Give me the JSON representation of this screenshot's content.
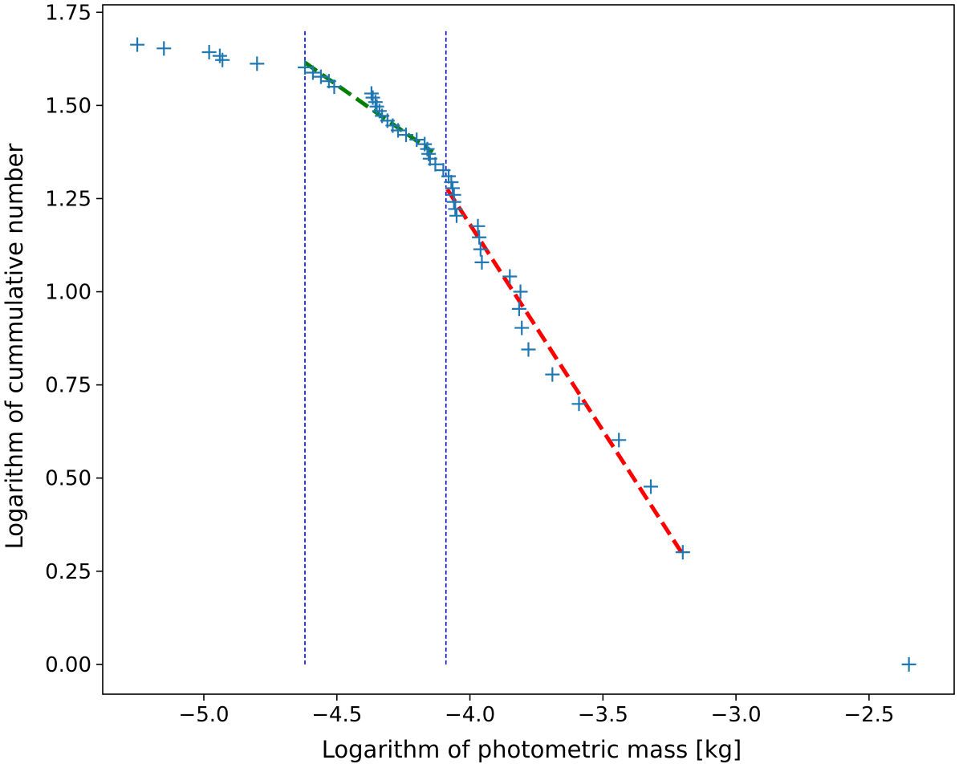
{
  "chart_data": {
    "type": "scatter",
    "title": "",
    "xlabel": "Logarithm of photometric mass [kg]",
    "ylabel": "Logarithm of cummulative number",
    "xlim": [
      -5.38,
      -2.18
    ],
    "ylim": [
      -0.08,
      1.77
    ],
    "grid": false,
    "x_ticks": [
      -5.0,
      -4.5,
      -4.0,
      -3.5,
      -3.0,
      -2.5
    ],
    "x_tick_labels": [
      "−5.0",
      "−4.5",
      "−4.0",
      "−3.5",
      "−3.0",
      "−2.5"
    ],
    "y_ticks": [
      0.0,
      0.25,
      0.5,
      0.75,
      1.0,
      1.25,
      1.5,
      1.75
    ],
    "y_tick_labels": [
      "0.00",
      "0.25",
      "0.50",
      "0.75",
      "1.00",
      "1.25",
      "1.50",
      "1.75"
    ],
    "series": [
      {
        "marker": "plus",
        "color": "#1f77b4",
        "points": [
          [
            -5.25,
            1.663
          ],
          [
            -5.15,
            1.653
          ],
          [
            -4.98,
            1.643
          ],
          [
            -4.94,
            1.633
          ],
          [
            -4.93,
            1.622
          ],
          [
            -4.8,
            1.612
          ],
          [
            -4.62,
            1.602
          ],
          [
            -4.59,
            1.588
          ],
          [
            -4.56,
            1.577
          ],
          [
            -4.53,
            1.565
          ],
          [
            -4.51,
            1.55
          ],
          [
            -4.37,
            1.532
          ],
          [
            -4.365,
            1.521
          ],
          [
            -4.355,
            1.509
          ],
          [
            -4.35,
            1.497
          ],
          [
            -4.34,
            1.485
          ],
          [
            -4.33,
            1.472
          ],
          [
            -4.31,
            1.459
          ],
          [
            -4.29,
            1.446
          ],
          [
            -4.27,
            1.433
          ],
          [
            -4.24,
            1.421
          ],
          [
            -4.2,
            1.408
          ],
          [
            -4.17,
            1.396
          ],
          [
            -4.16,
            1.383
          ],
          [
            -4.155,
            1.37
          ],
          [
            -4.15,
            1.357
          ],
          [
            -4.13,
            1.342
          ],
          [
            -4.1,
            1.326
          ],
          [
            -4.08,
            1.31
          ],
          [
            -4.07,
            1.294
          ],
          [
            -4.065,
            1.278
          ],
          [
            -4.06,
            1.26
          ],
          [
            -4.06,
            1.241
          ],
          [
            -4.055,
            1.222
          ],
          [
            -4.05,
            1.204
          ],
          [
            -3.97,
            1.176
          ],
          [
            -3.965,
            1.146
          ],
          [
            -3.96,
            1.114
          ],
          [
            -3.955,
            1.079
          ],
          [
            -3.85,
            1.041
          ],
          [
            -3.81,
            1.0
          ],
          [
            -3.815,
            0.954
          ],
          [
            -3.805,
            0.903
          ],
          [
            -3.78,
            0.845
          ],
          [
            -3.69,
            0.778
          ],
          [
            -3.59,
            0.699
          ],
          [
            -3.44,
            0.602
          ],
          [
            -3.32,
            0.477
          ],
          [
            -3.2,
            0.301
          ],
          [
            -2.35,
            0.0
          ]
        ]
      },
      {
        "type": "line",
        "style": "dashed",
        "color": "#008000",
        "points": [
          [
            -4.62,
            1.615
          ],
          [
            -4.14,
            1.375
          ]
        ]
      },
      {
        "type": "line",
        "style": "dashed",
        "color": "#ff0000",
        "points": [
          [
            -4.085,
            1.275
          ],
          [
            -3.2,
            0.295
          ]
        ]
      }
    ],
    "vertical_lines": [
      {
        "x": -4.62,
        "y_range": [
          0.0,
          1.7
        ],
        "style": "dashed",
        "color": "#0000ff"
      },
      {
        "x": -4.09,
        "y_range": [
          0.0,
          1.7
        ],
        "style": "dashed",
        "color": "#0000ff"
      }
    ]
  }
}
